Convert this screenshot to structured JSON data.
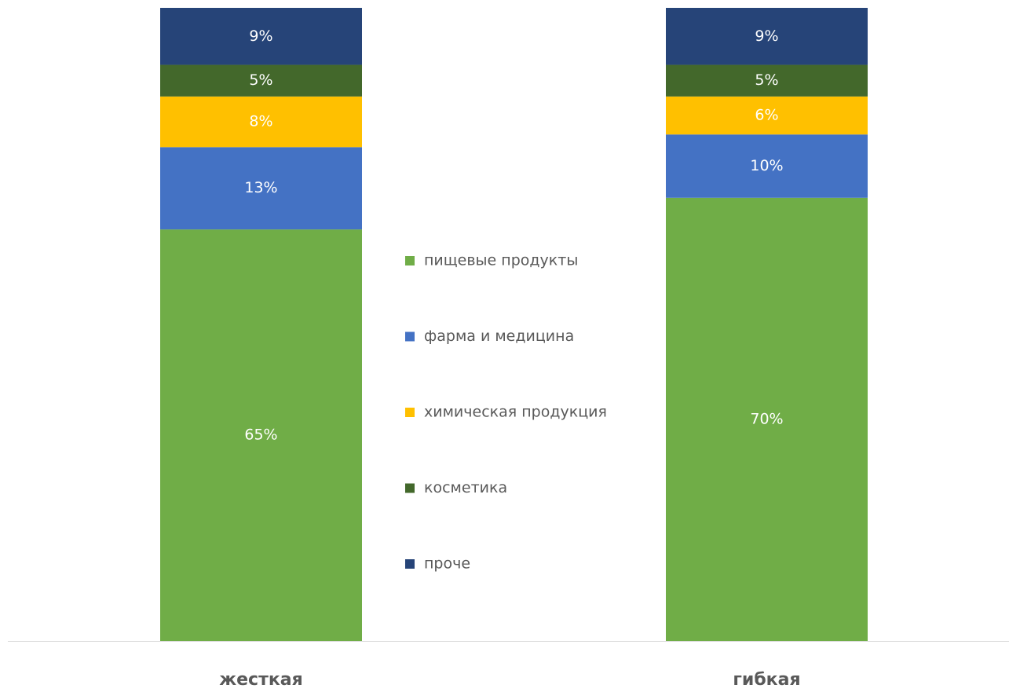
{
  "chart_data": {
    "type": "stacked_bar_percent",
    "categories": [
      "жесткая",
      "гибкая"
    ],
    "series": [
      {
        "name": "пищевые продукты",
        "color": "#70ad47",
        "values": [
          65,
          70
        ],
        "value_labels": [
          "65%",
          "70%"
        ]
      },
      {
        "name": "фарма и медицина",
        "color": "#4472c4",
        "values": [
          13,
          10
        ],
        "value_labels": [
          "13%",
          "10%"
        ]
      },
      {
        "name": "химическая продукция",
        "color": "#ffc000",
        "values": [
          8,
          6
        ],
        "value_labels": [
          "8%",
          "6%"
        ]
      },
      {
        "name": "косметика",
        "color": "#43682b",
        "values": [
          5,
          5
        ],
        "value_labels": [
          "5%",
          "5%"
        ]
      },
      {
        "name": "проче",
        "color": "#264478",
        "values": [
          9,
          9
        ],
        "value_labels": [
          "9%",
          "9%"
        ]
      }
    ]
  }
}
